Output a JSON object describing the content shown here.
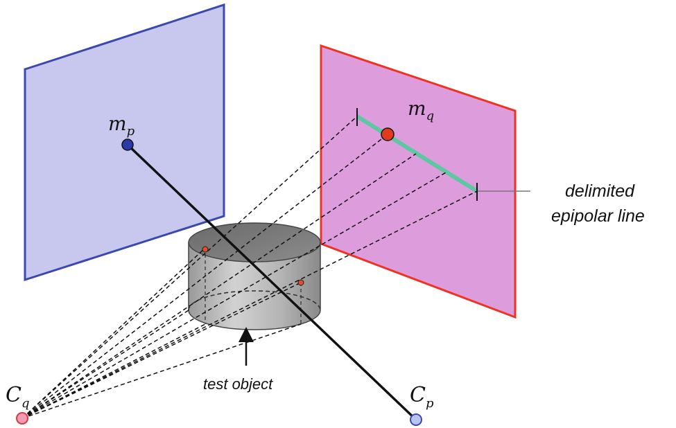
{
  "labels": {
    "mp_main": "m",
    "mp_sub": "p",
    "mq_main": "m",
    "mq_sub": "q",
    "cq_main": "C",
    "cq_sub": "q",
    "cp_main": "C",
    "cp_sub": "p",
    "epipolar_line1": "delimited",
    "epipolar_line2": "epipolar line",
    "test_object": "test object"
  },
  "colors": {
    "plane_p_fill": "#c8c8ee",
    "plane_p_stroke": "#3a48b0",
    "plane_q_fill": "#dd9ddd",
    "plane_q_stroke": "#ee3322",
    "epipolar_segment": "#5cc7a0",
    "point_mp": "#2a3aa8",
    "point_mq": "#e23a20",
    "center_cq": "#f29ab6",
    "center_cp": "#b8c4f4",
    "object_point": "#e84a30"
  }
}
